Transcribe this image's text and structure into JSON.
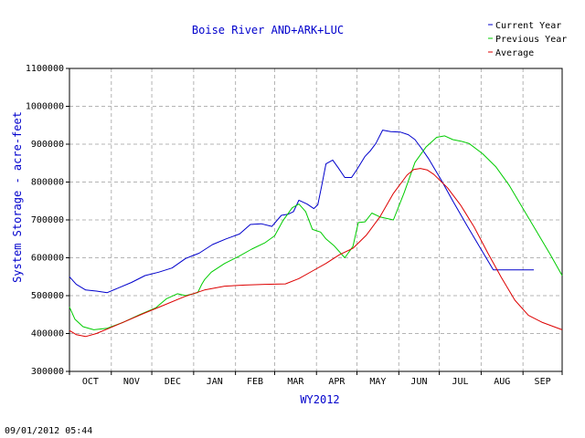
{
  "chart_data": {
    "type": "line",
    "title": "Boise River AND+ARK+LUC",
    "xlabel": "WY2012",
    "ylabel": "System Storage - acre-feet",
    "categories": [
      "OCT",
      "NOV",
      "DEC",
      "JAN",
      "FEB",
      "MAR",
      "APR",
      "MAY",
      "JUN",
      "JUL",
      "AUG",
      "SEP"
    ],
    "x_unit": "day of water year (Oct 1 = 0)",
    "xlim": [
      0,
      365
    ],
    "ylim": [
      300000,
      1100000
    ],
    "yticks": [
      "300000",
      "400000",
      "500000",
      "600000",
      "700000",
      "800000",
      "900000",
      "1000000",
      "1100000"
    ],
    "grid": true,
    "legend_position": "top-right",
    "series": [
      {
        "name": "Current Year",
        "color": "#0000cc",
        "x": [
          0,
          5,
          12,
          20,
          28,
          36,
          46,
          56,
          66,
          76,
          86,
          91,
          96,
          106,
          116,
          126,
          134,
          142,
          150,
          157,
          162,
          166,
          170,
          176,
          181,
          184,
          187,
          190,
          195,
          199,
          204,
          209,
          213,
          219,
          223,
          227,
          232,
          238,
          245,
          251,
          256,
          261,
          266,
          270,
          275,
          284,
          294,
          304,
          314,
          324,
          334,
          344,
          344
        ],
        "y": [
          550000,
          530000,
          515000,
          512000,
          508000,
          520000,
          535000,
          553000,
          562000,
          573000,
          598000,
          605000,
          612000,
          635000,
          650000,
          663000,
          688000,
          690000,
          683000,
          712000,
          715000,
          722000,
          752000,
          742000,
          730000,
          740000,
          792000,
          848000,
          858000,
          838000,
          812000,
          812000,
          833000,
          868000,
          883000,
          902000,
          937000,
          933000,
          932000,
          925000,
          912000,
          888000,
          862000,
          838000,
          808000,
          750000,
          688000,
          628000,
          568000,
          568000,
          568000,
          568000,
          568000
        ]
      },
      {
        "name": "Previous Year",
        "color": "#00cc00",
        "x": [
          0,
          4,
          10,
          18,
          28,
          40,
          52,
          64,
          72,
          80,
          86,
          95,
          98,
          100,
          105,
          115,
          125,
          135,
          145,
          152,
          158,
          165,
          170,
          175,
          180,
          186,
          190,
          196,
          204,
          210,
          214,
          219,
          224,
          230,
          240,
          248,
          256,
          264,
          272,
          278,
          284,
          290,
          296,
          306,
          316,
          326,
          336,
          346,
          356,
          365
        ],
        "y": [
          470000,
          438000,
          418000,
          410000,
          414000,
          430000,
          450000,
          468000,
          492000,
          505000,
          500000,
          508000,
          530000,
          542000,
          562000,
          585000,
          603000,
          623000,
          640000,
          658000,
          697000,
          732000,
          742000,
          722000,
          675000,
          668000,
          650000,
          632000,
          600000,
          630000,
          693000,
          695000,
          718000,
          708000,
          700000,
          772000,
          852000,
          892000,
          918000,
          922000,
          912000,
          908000,
          902000,
          875000,
          840000,
          790000,
          730000,
          670000,
          610000,
          553000
        ]
      },
      {
        "name": "Average",
        "color": "#dd0000",
        "x": [
          0,
          5,
          12,
          20,
          30,
          40,
          55,
          70,
          85,
          100,
          115,
          130,
          145,
          160,
          170,
          180,
          190,
          200,
          210,
          220,
          230,
          240,
          250,
          255,
          260,
          265,
          270,
          280,
          290,
          300,
          310,
          320,
          330,
          340,
          350,
          365
        ],
        "y": [
          408000,
          397000,
          392000,
          400000,
          415000,
          430000,
          453000,
          475000,
          497000,
          515000,
          525000,
          528000,
          530000,
          531000,
          545000,
          565000,
          585000,
          608000,
          625000,
          660000,
          708000,
          770000,
          818000,
          833000,
          836000,
          832000,
          820000,
          785000,
          738000,
          680000,
          612000,
          548000,
          488000,
          448000,
          430000,
          410000
        ]
      }
    ]
  },
  "timestamp": "09/01/2012 05:44"
}
